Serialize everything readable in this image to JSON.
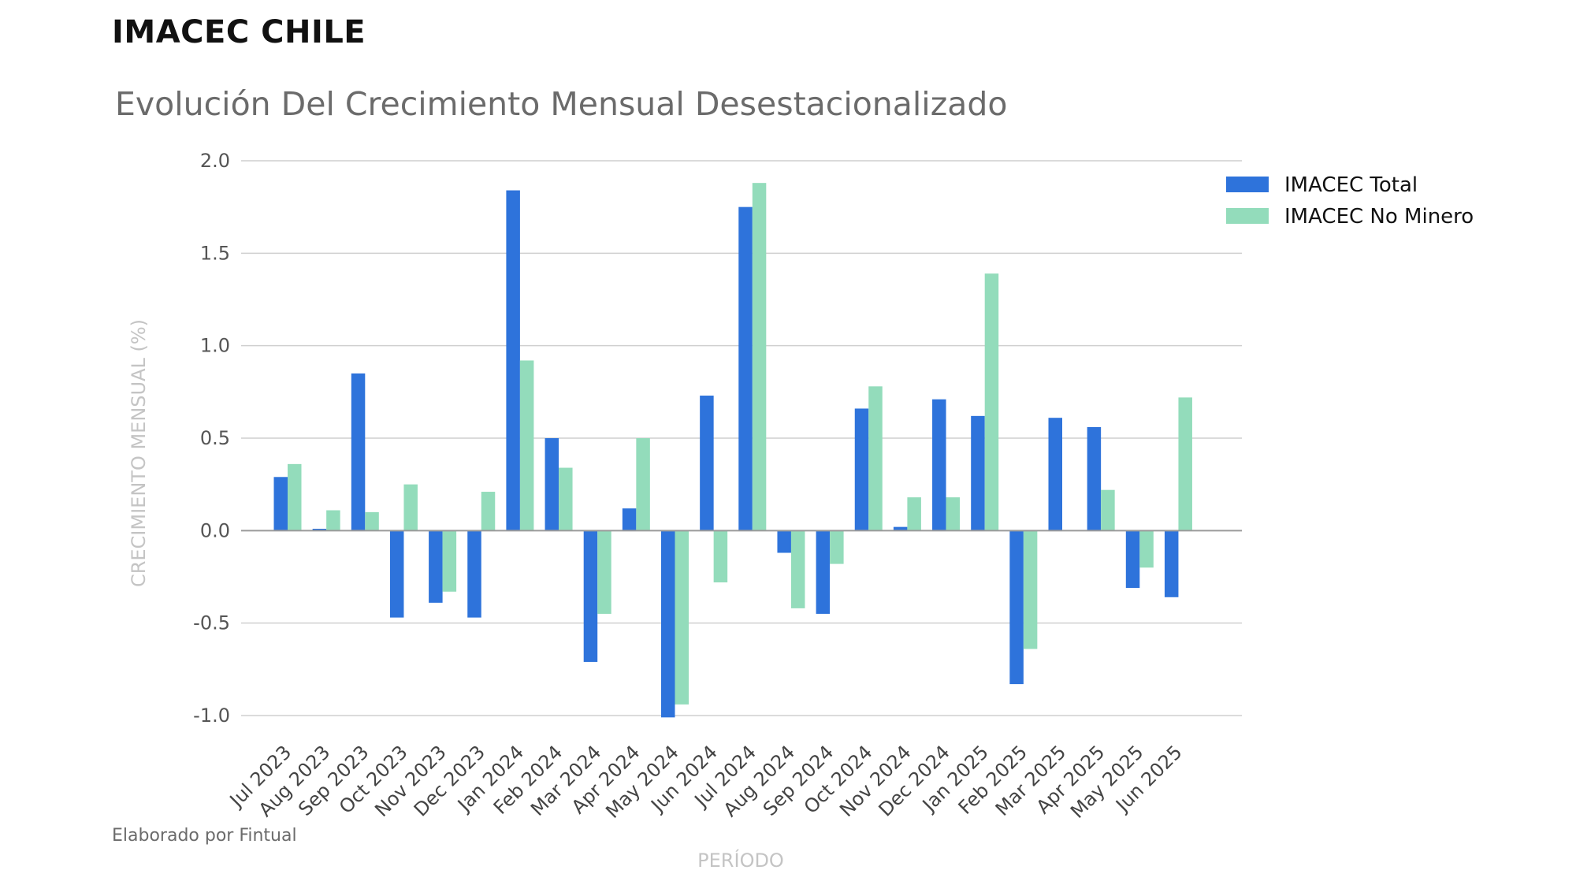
{
  "header": {
    "title": "IMACEC CHILE"
  },
  "footer": {
    "credit": "Elaborado por Fintual"
  },
  "colors": {
    "total": "#2e73db",
    "no_minero": "#93dcbb",
    "grid": "#cfcfcf",
    "zero": "#9a9a9a"
  },
  "chart_data": {
    "type": "bar",
    "title": "Evolución Del Crecimiento Mensual Desestacionalizado",
    "xlabel": "PERÍODO",
    "ylabel": "CRECIMIENTO MENSUAL (%)",
    "ylim": [
      -1.0,
      2.0
    ],
    "yticks": [
      2.0,
      1.5,
      1.0,
      0.5,
      0.0,
      -0.5,
      -1.0
    ],
    "ytick_labels": [
      "2.0",
      "1.5",
      "1.0",
      "0.5",
      "0.0",
      "-0.5",
      "-1.0"
    ],
    "legend_position": "top-right",
    "grid": true,
    "categories": [
      "Jul 2023",
      "Aug 2023",
      "Sep 2023",
      "Oct 2023",
      "Nov 2023",
      "Dec 2023",
      "Jan 2024",
      "Feb 2024",
      "Mar 2024",
      "Apr 2024",
      "May 2024",
      "Jun 2024",
      "Jul 2024",
      "Aug 2024",
      "Sep 2024",
      "Oct 2024",
      "Nov 2024",
      "Dec 2024",
      "Jan 2025",
      "Feb 2025",
      "Mar 2025",
      "Apr 2025",
      "May 2025",
      "Jun 2025"
    ],
    "series": [
      {
        "name": "IMACEC Total",
        "color": "#2e73db",
        "values": [
          0.29,
          0.01,
          0.85,
          -0.47,
          -0.39,
          -0.47,
          1.84,
          0.5,
          -0.71,
          0.12,
          -1.01,
          0.73,
          1.75,
          -0.12,
          -0.45,
          0.66,
          0.02,
          0.71,
          0.62,
          -0.83,
          0.61,
          0.56,
          -0.31,
          -0.36
        ]
      },
      {
        "name": "IMACEC No Minero",
        "color": "#93dcbb",
        "values": [
          0.36,
          0.11,
          0.1,
          0.25,
          -0.33,
          0.21,
          0.92,
          0.34,
          -0.45,
          0.5,
          -0.94,
          -0.28,
          1.88,
          -0.42,
          -0.18,
          0.78,
          0.18,
          0.18,
          1.39,
          -0.64,
          0.0,
          0.22,
          -0.2,
          0.72
        ]
      }
    ]
  }
}
